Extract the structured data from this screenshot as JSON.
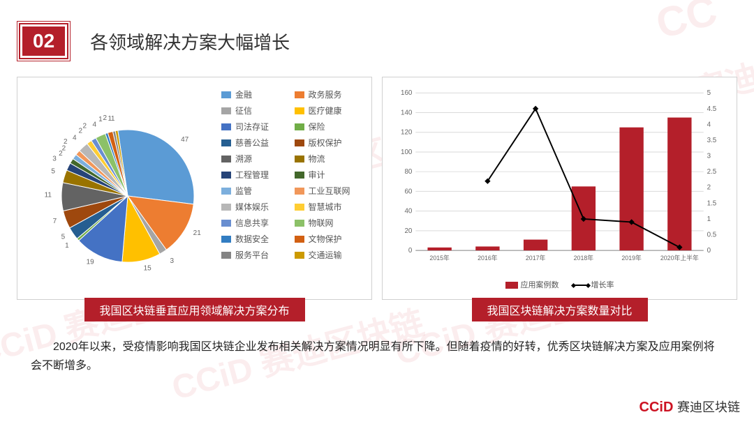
{
  "header": {
    "number": "02",
    "title": "各领域解决方案大幅增长"
  },
  "pie": {
    "type": "pie",
    "caption": "我国区块链垂直应用领域解决方案分布",
    "label_fontsize": 10,
    "legend_fontsize": 12,
    "background_color": "#ffffff",
    "slices": [
      {
        "label": "金融",
        "value": 47,
        "color": "#5b9bd5"
      },
      {
        "label": "政务服务",
        "value": 21,
        "color": "#ed7d31"
      },
      {
        "label": "征信",
        "value": 3,
        "color": "#a5a5a5"
      },
      {
        "label": "医疗健康",
        "value": 15,
        "color": "#ffc000"
      },
      {
        "label": "司法存证",
        "value": 19,
        "color": "#4472c4"
      },
      {
        "label": "保险",
        "value": 1,
        "color": "#70ad47"
      },
      {
        "label": "慈善公益",
        "value": 5,
        "color": "#255e91"
      },
      {
        "label": "版权保护",
        "value": 7,
        "color": "#9e480e"
      },
      {
        "label": "溯源",
        "value": 11,
        "color": "#636363"
      },
      {
        "label": "物流",
        "value": 5,
        "color": "#997300"
      },
      {
        "label": "工程管理",
        "value": 3,
        "color": "#264478"
      },
      {
        "label": "审计",
        "value": 2,
        "color": "#43682b"
      },
      {
        "label": "监管",
        "value": 2,
        "color": "#7cafdd"
      },
      {
        "label": "工业互联网",
        "value": 2,
        "color": "#f1975a"
      },
      {
        "label": "媒体娱乐",
        "value": 4,
        "color": "#b7b7b7"
      },
      {
        "label": "智慧城市",
        "value": 2,
        "color": "#ffcd33"
      },
      {
        "label": "信息共享",
        "value": 2,
        "color": "#698ed0"
      },
      {
        "label": "物联网",
        "value": 4,
        "color": "#8cc168"
      },
      {
        "label": "数据安全",
        "value": 1,
        "color": "#327dc2"
      },
      {
        "label": "文物保护",
        "value": 2,
        "color": "#d26012"
      },
      {
        "label": "服务平台",
        "value": 1,
        "color": "#848484"
      },
      {
        "label": "交通运输",
        "value": 1,
        "color": "#cc9a00"
      }
    ],
    "outer_value_labels": [
      47,
      21,
      3,
      15,
      19,
      1,
      5,
      7,
      11,
      5,
      3,
      2,
      2,
      2,
      4,
      2,
      2,
      4,
      1,
      2,
      1,
      1
    ]
  },
  "combo": {
    "type": "bar+line",
    "caption": "我国区块链解决方案数量对比",
    "categories": [
      "2015年",
      "2016年",
      "2017年",
      "2018年",
      "2019年",
      "2020年上半年"
    ],
    "bar_series": {
      "name": "应用案例数",
      "color": "#b41f2a",
      "values": [
        3,
        4,
        11,
        65,
        125,
        135
      ]
    },
    "line_series": {
      "name": "增长率",
      "color": "#000000",
      "marker": "diamond",
      "values": [
        null,
        2.2,
        4.5,
        1.0,
        0.9,
        0.1
      ]
    },
    "y_left": {
      "min": 0,
      "max": 160,
      "step": 20,
      "grid_color": "#d9d9d9"
    },
    "y_right": {
      "min": 0,
      "max": 5,
      "step": 0.5
    },
    "axis_fontsize": 10,
    "bar_width": 0.5,
    "background_color": "#ffffff"
  },
  "body_text": "2020年以来，受疫情影响我国区块链企业发布相关解决方案情况明显有所下降。但随着疫情的好转，优秀区块链解决方案及应用案例将会不断增多。",
  "footer": {
    "logo": "CCiD",
    "brand": "赛迪区块链",
    "color": "#cc1222"
  },
  "watermark": {
    "text": "CCiD 赛迪区块链",
    "color": "rgba(200,30,40,0.08)"
  }
}
